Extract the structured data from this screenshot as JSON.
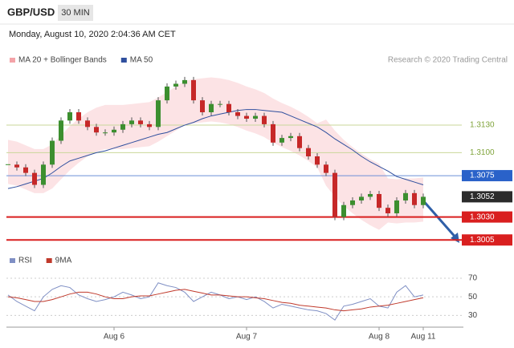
{
  "header": {
    "symbol": "GBP/USD",
    "interval": "30 MIN",
    "timestamp": "Monday, August 10, 2020 2:04:36 AM CET"
  },
  "chart_data": [
    {
      "type": "candlestick",
      "note": "Research © 2020 Trading Central",
      "ylim": [
        1.3,
        1.3192
      ],
      "up_color": "#3c8f2f",
      "down_color": "#c62828",
      "values": [
        1.3087,
        1.3084,
        1.3078,
        1.3065,
        1.3087,
        1.3113,
        1.3135,
        1.3144,
        1.3135,
        1.3128,
        1.3122,
        1.3122,
        1.3125,
        1.3131,
        1.3135,
        1.3131,
        1.3128,
        1.3157,
        1.3172,
        1.3175,
        1.3179,
        1.3157,
        1.3144,
        1.3153,
        1.3153,
        1.3144,
        1.314,
        1.3137,
        1.314,
        1.3131,
        1.3111,
        1.3116,
        1.3118,
        1.3105,
        1.3096,
        1.3087,
        1.3078,
        1.303,
        1.3043,
        1.3048,
        1.3052,
        1.3055,
        1.304,
        1.3034,
        1.3048,
        1.3056,
        1.3043,
        1.3052
      ],
      "bands": {
        "name": "MA 20 + Bollinger Bands",
        "color": "#f4a3a8",
        "upper": [
          1.3114,
          1.3112,
          1.3108,
          1.3104,
          1.3104,
          1.3109,
          1.3119,
          1.3129,
          1.3137,
          1.3144,
          1.3149,
          1.3152,
          1.3152,
          1.3152,
          1.3153,
          1.3154,
          1.3155,
          1.316,
          1.3166,
          1.3172,
          1.3178,
          1.318,
          1.3181,
          1.3182,
          1.3181,
          1.3179,
          1.3176,
          1.3172,
          1.3169,
          1.3165,
          1.3159,
          1.3154,
          1.315,
          1.3145,
          1.3139,
          1.3132,
          1.3136,
          1.3124,
          1.3114,
          1.3106,
          1.3099,
          1.3093,
          1.3088,
          1.3072,
          1.3071,
          1.3072,
          1.3072,
          1.3073
        ],
        "lower": [
          1.3066,
          1.3064,
          1.306,
          1.3056,
          1.3056,
          1.3061,
          1.3071,
          1.3081,
          1.3089,
          1.3096,
          1.3101,
          1.3104,
          1.3104,
          1.3104,
          1.3105,
          1.3106,
          1.3107,
          1.3112,
          1.3118,
          1.3124,
          1.313,
          1.3132,
          1.3133,
          1.3134,
          1.3133,
          1.3131,
          1.3128,
          1.3124,
          1.3121,
          1.3117,
          1.3111,
          1.3106,
          1.3102,
          1.3097,
          1.3091,
          1.3084,
          1.3064,
          1.3052,
          1.3042,
          1.3034,
          1.3027,
          1.3021,
          1.3016,
          1.3024,
          1.3023,
          1.3024,
          1.3024,
          1.3025
        ]
      },
      "ma50": {
        "name": "MA 50",
        "color": "#2f4f9e",
        "values": [
          1.3061,
          1.3063,
          1.3066,
          1.3069,
          1.3072,
          1.3078,
          1.3085,
          1.3091,
          1.3094,
          1.3097,
          1.31,
          1.3102,
          1.3105,
          1.3108,
          1.3111,
          1.3114,
          1.3117,
          1.312,
          1.3122,
          1.3126,
          1.313,
          1.3133,
          1.3137,
          1.314,
          1.3142,
          1.3144,
          1.3146,
          1.3147,
          1.3147,
          1.3146,
          1.3145,
          1.3144,
          1.314,
          1.3136,
          1.3132,
          1.3128,
          1.3122,
          1.3115,
          1.3109,
          1.3103,
          1.3096,
          1.309,
          1.3085,
          1.308,
          1.3074,
          1.3071,
          1.3068,
          1.3065
        ]
      },
      "levels": [
        {
          "value": 1.313,
          "label": "1.3130",
          "color": "#7fa33a",
          "line": "#c9d79a",
          "box": false
        },
        {
          "value": 1.31,
          "label": "1.3100",
          "color": "#7fa33a",
          "line": "#c9d79a",
          "box": false
        },
        {
          "value": 1.3075,
          "label": "1.3075",
          "color": "#2a62c9",
          "line": "#6b8fd6",
          "box": true
        },
        {
          "value": 1.3052,
          "label": "1.3052",
          "color": "#2b2b2b",
          "line": null,
          "box": true
        },
        {
          "value": 1.303,
          "label": "1.3030",
          "color": "#d91f1f",
          "line": "#d91f1f",
          "box": true
        },
        {
          "value": 1.3005,
          "label": "1.3005",
          "color": "#d91f1f",
          "line": "#d91f1f",
          "box": true
        }
      ]
    },
    {
      "type": "line",
      "categories": [
        null,
        null,
        null,
        null,
        null,
        null,
        null,
        null,
        null,
        null,
        null,
        null,
        "Aug 6",
        null,
        null,
        null,
        null,
        null,
        null,
        null,
        null,
        null,
        null,
        null,
        null,
        null,
        null,
        "Aug 7",
        null,
        null,
        null,
        null,
        null,
        null,
        null,
        null,
        null,
        null,
        null,
        null,
        null,
        null,
        "Aug 8",
        null,
        null,
        null,
        null,
        "Aug 11"
      ],
      "ylim": [
        20,
        76
      ],
      "yticks": [
        30,
        50,
        70
      ],
      "grid": true,
      "series": [
        {
          "name": "RSI",
          "color": "#7f8fc4",
          "values": [
            52,
            45,
            40,
            35,
            50,
            58,
            62,
            60,
            52,
            48,
            45,
            47,
            50,
            55,
            52,
            48,
            50,
            65,
            62,
            60,
            55,
            45,
            50,
            55,
            52,
            48,
            50,
            47,
            50,
            45,
            38,
            42,
            40,
            38,
            36,
            35,
            32,
            25,
            40,
            42,
            45,
            48,
            40,
            38,
            55,
            62,
            50,
            52
          ]
        },
        {
          "name": "9MA",
          "color": "#c0392b",
          "values": [
            50,
            49,
            47,
            45,
            45,
            47,
            50,
            53,
            55,
            55,
            53,
            50,
            48,
            48,
            50,
            51,
            51,
            53,
            55,
            57,
            58,
            56,
            54,
            52,
            52,
            51,
            50,
            50,
            49,
            48,
            46,
            44,
            43,
            41,
            40,
            39,
            38,
            36,
            35,
            36,
            37,
            39,
            40,
            41,
            43,
            45,
            47,
            49
          ]
        }
      ]
    }
  ]
}
